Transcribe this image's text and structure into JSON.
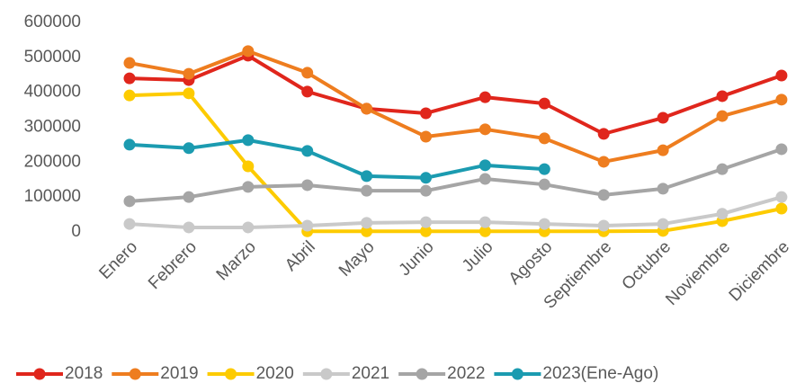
{
  "chart_data": {
    "type": "line",
    "categories": [
      "Enero",
      "Febrero",
      "Marzo",
      "Abril",
      "Mayo",
      "Junio",
      "Julio",
      "Agosto",
      "Septiembre",
      "Octubre",
      "Noviembre",
      "Diciembre"
    ],
    "series": [
      {
        "name": "2018",
        "color": "#e0261c",
        "values": [
          440000,
          435000,
          505000,
          402000,
          353000,
          340000,
          386000,
          368000,
          281000,
          327000,
          389000,
          448000
        ]
      },
      {
        "name": "2019",
        "color": "#ee7d1f",
        "values": [
          484000,
          453000,
          518000,
          456000,
          353000,
          273000,
          294000,
          268000,
          201000,
          234000,
          332000,
          379000
        ]
      },
      {
        "name": "2020",
        "color": "#fdcb00",
        "values": [
          391000,
          397000,
          188000,
          2000,
          2000,
          2000,
          2000,
          2000,
          2000,
          3000,
          31000,
          67000
        ]
      },
      {
        "name": "2021",
        "color": "#c9c9c9",
        "values": [
          23000,
          13000,
          13000,
          18000,
          26000,
          28000,
          28000,
          23000,
          18000,
          23000,
          52000,
          100000
        ]
      },
      {
        "name": "2022",
        "color": "#a5a5a5",
        "values": [
          88000,
          100000,
          129000,
          134000,
          118000,
          118000,
          152000,
          136000,
          106000,
          124000,
          180000,
          237000
        ]
      },
      {
        "name": "2023(Ene-Ago)",
        "color": "#1b9bb0",
        "values": [
          250000,
          240000,
          263000,
          232000,
          160000,
          155000,
          191000,
          180000,
          null,
          null,
          null,
          null
        ]
      }
    ],
    "ylim": [
      0,
      600000
    ],
    "yticks": [
      0,
      100000,
      200000,
      300000,
      400000,
      500000,
      600000
    ],
    "legend": "bottom"
  }
}
